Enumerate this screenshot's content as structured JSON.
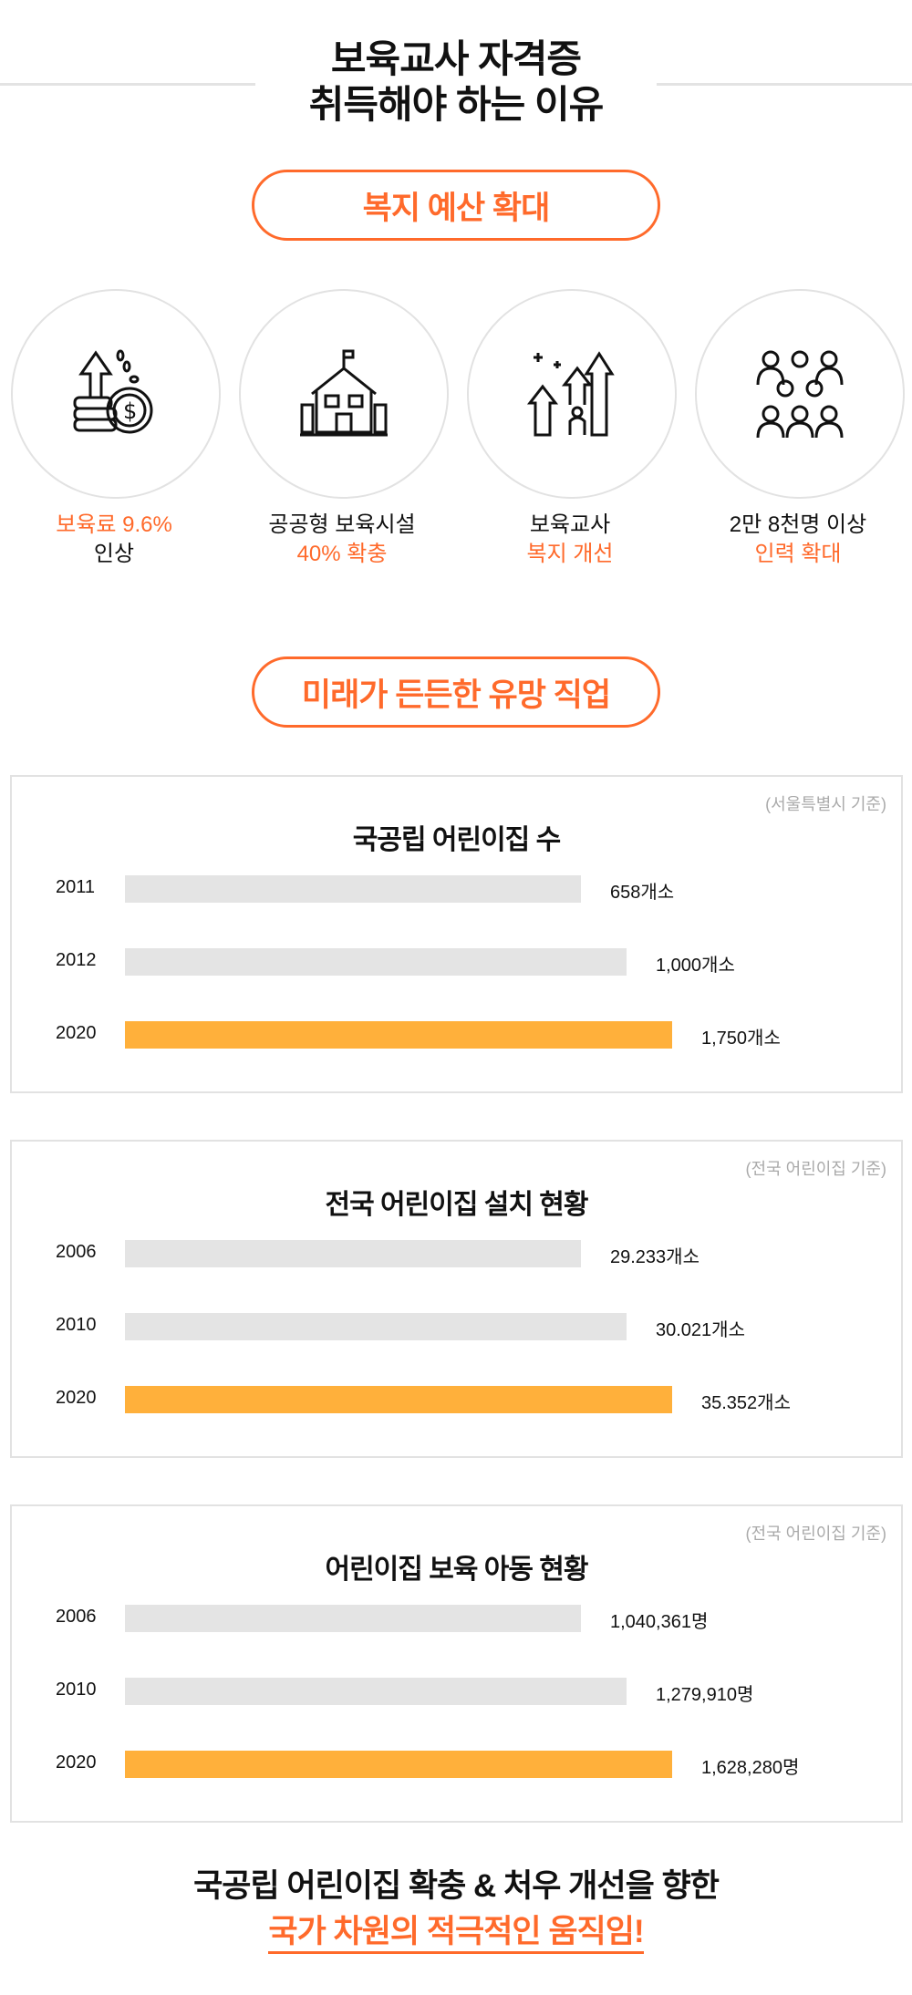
{
  "header": {
    "line1": "보육교사 자격증",
    "line2": "취득해야 하는 이유"
  },
  "section1": {
    "pill": "복지 예산 확대",
    "items": [
      {
        "icon": "money-growth-icon",
        "line1": "보육료 9.6%",
        "line1_accent": true,
        "line2": "인상",
        "line2_accent": false
      },
      {
        "icon": "school-building-icon",
        "line1": "공공형 보육시설",
        "line1_accent": false,
        "line2": "40% 확충",
        "line2_accent": true
      },
      {
        "icon": "growth-arrows-person-icon",
        "line1": "보육교사",
        "line1_accent": false,
        "line2": "복지 개선",
        "line2_accent": true
      },
      {
        "icon": "crowd-people-icon",
        "line1": "2만 8천명 이상",
        "line1_accent": false,
        "line2": "인력 확대",
        "line2_accent": true
      }
    ]
  },
  "section2": {
    "pill": "미래가 든든한 유망 직업"
  },
  "charts": [
    {
      "source": "(서울특별시 기준)",
      "title": "국공립 어린이집 수",
      "rows": [
        {
          "year": "2011",
          "value": "658개소",
          "highlight": false
        },
        {
          "year": "2012",
          "value": "1,000개소",
          "highlight": false
        },
        {
          "year": "2020",
          "value": "1,750개소",
          "highlight": true
        }
      ]
    },
    {
      "source": "(전국 어린이집 기준)",
      "title": "전국 어린이집 설치 현황",
      "rows": [
        {
          "year": "2006",
          "value": "29.233개소",
          "highlight": false
        },
        {
          "year": "2010",
          "value": "30.021개소",
          "highlight": false
        },
        {
          "year": "2020",
          "value": "35.352개소",
          "highlight": true
        }
      ]
    },
    {
      "source": "(전국 어린이집 기준)",
      "title": "어린이집 보육 아동 현황",
      "rows": [
        {
          "year": "2006",
          "value": "1,040,361명",
          "highlight": false
        },
        {
          "year": "2010",
          "value": "1,279,910명",
          "highlight": false
        },
        {
          "year": "2020",
          "value": "1,628,280명",
          "highlight": true
        }
      ]
    }
  ],
  "footer": {
    "line1": "국공립 어린이집 확충 & 처우 개선을 향한",
    "line2": "국가 차원의 적극적인 움직임!"
  },
  "colors": {
    "accent": "#ff6a2b",
    "bar_highlight": "#ffb03b",
    "bar": "#e4e4e4",
    "border": "#e2e2e2"
  }
}
